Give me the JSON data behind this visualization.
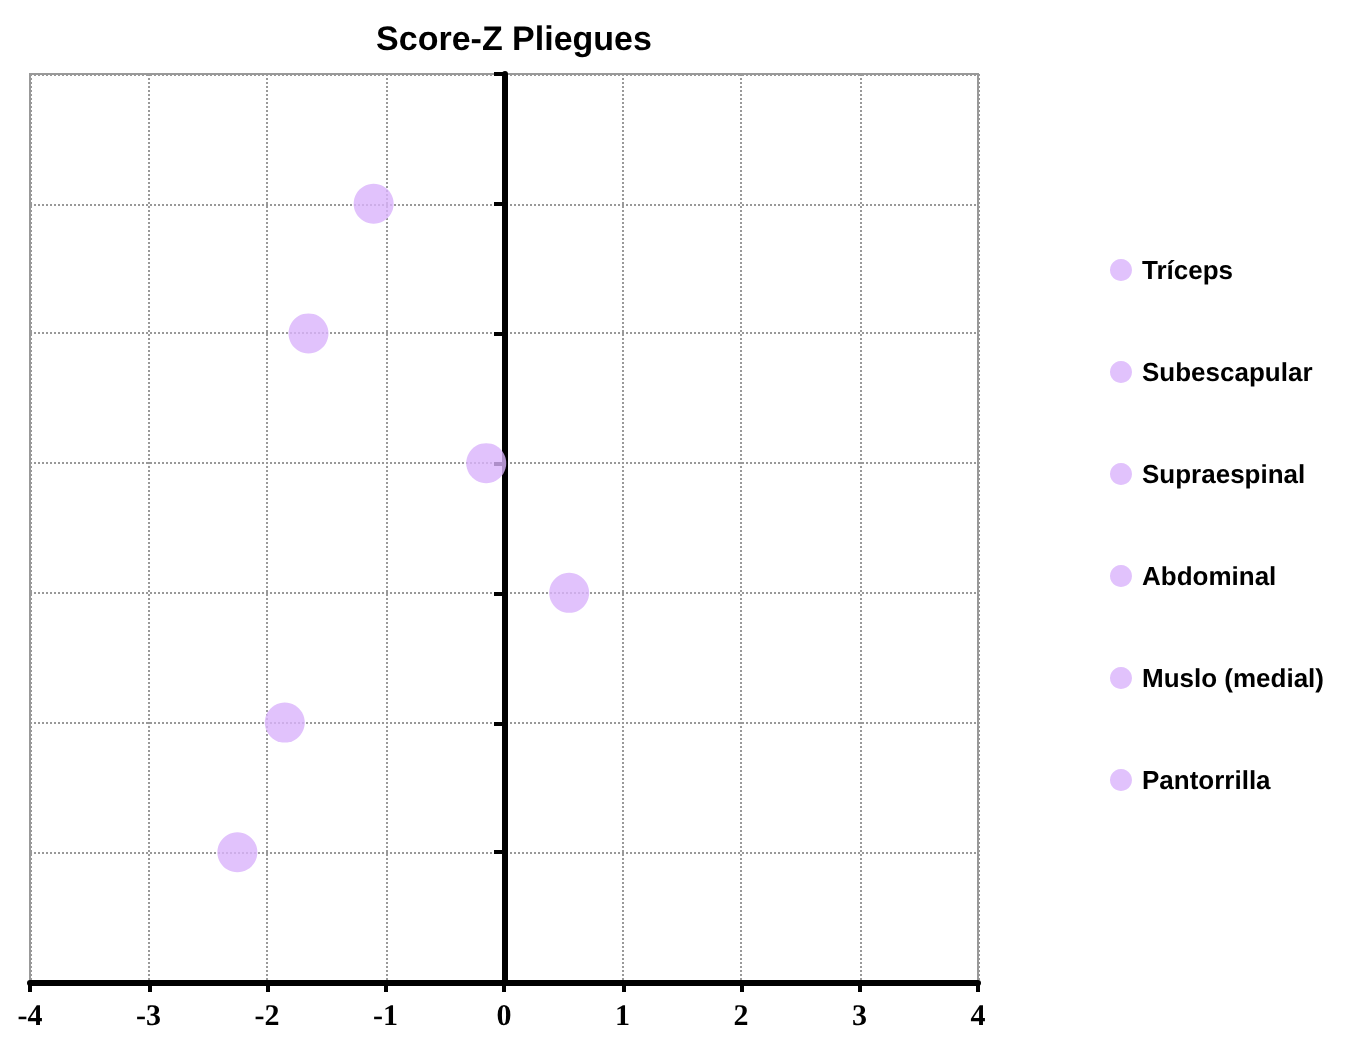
{
  "chart_data": {
    "type": "scatter",
    "title": "Score-Z Pliegues",
    "orientation": "horizontal",
    "categories": [
      null,
      null,
      null,
      null,
      null,
      null
    ],
    "xlim": [
      -4,
      4
    ],
    "xticks": [
      -4,
      -3,
      -2,
      -1,
      0,
      1,
      2,
      3,
      4
    ],
    "grid": true,
    "legend": "right",
    "marker": "circle",
    "series": [
      {
        "name": "Tríceps",
        "color": "#d9b3fb",
        "values": [
          -1.1,
          null,
          null,
          null,
          null,
          null
        ]
      },
      {
        "name": "Subescapular",
        "color": "#d9b3fb",
        "values": [
          null,
          -1.65,
          null,
          null,
          null,
          null
        ]
      },
      {
        "name": "Supraespinal",
        "color": "#d9b3fb",
        "values": [
          null,
          null,
          -0.15,
          null,
          null,
          null
        ]
      },
      {
        "name": "Abdominal",
        "color": "#d9b3fb",
        "values": [
          null,
          null,
          null,
          0.55,
          null,
          null
        ]
      },
      {
        "name": "Muslo (medial)",
        "color": "#d9b3fb",
        "values": [
          null,
          null,
          null,
          null,
          -1.85,
          null
        ]
      },
      {
        "name": "Pantorrilla",
        "color": "#d9b3fb",
        "values": [
          null,
          null,
          null,
          null,
          null,
          -2.25
        ]
      }
    ]
  }
}
